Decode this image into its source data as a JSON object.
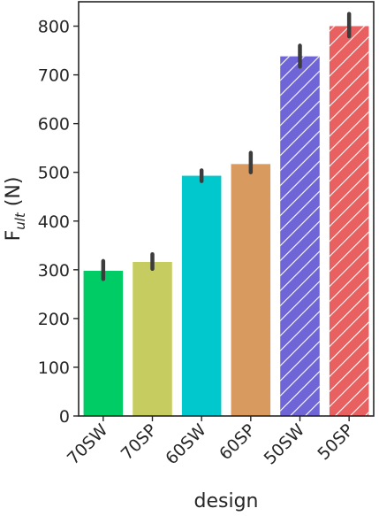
{
  "chart_data": {
    "type": "bar",
    "title": "",
    "xlabel": "design",
    "ylabel": "F",
    "ylabel_subscript": "ult",
    "ylabel_suffix": " (N)",
    "categories": [
      "70SW",
      "70SP",
      "60SW",
      "60SP",
      "50SW",
      "50SP"
    ],
    "values": [
      298,
      316,
      493,
      517,
      738,
      800
    ],
    "error_low": [
      281,
      302,
      482,
      500,
      717,
      779
    ],
    "error_high": [
      318,
      332,
      504,
      540,
      760,
      825
    ],
    "bar_colors": [
      "#00cc66",
      "#c6cc60",
      "#00c8cc",
      "#d89a5e",
      "#6f65d6",
      "#e8605f"
    ],
    "hatched": [
      false,
      false,
      false,
      false,
      true,
      true
    ],
    "ylim": [
      0,
      850
    ],
    "yticks": [
      0,
      100,
      200,
      300,
      400,
      500,
      600,
      700,
      800
    ],
    "grid": false,
    "legend": "none"
  }
}
